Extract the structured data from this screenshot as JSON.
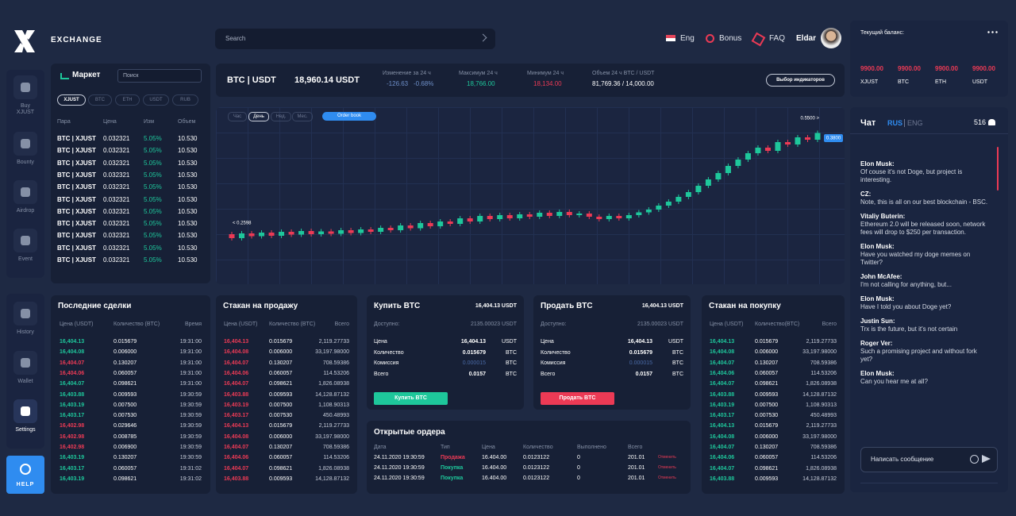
{
  "header": {
    "brand": "EXCHANGE",
    "search": "Search",
    "lang": "Eng",
    "bonus": "Bonus",
    "faq": "FAQ",
    "user": "Eldar"
  },
  "sidebar": {
    "items": [
      {
        "label": "Buy XJUST"
      },
      {
        "label": "Bounty"
      },
      {
        "label": "Airdrop"
      },
      {
        "label": "Event"
      },
      {
        "label": "History"
      },
      {
        "label": "Wallet"
      },
      {
        "label": "Settings"
      }
    ],
    "help": "HELP"
  },
  "balance": {
    "title": "Текущий баланс:",
    "items": [
      {
        "value": "9900.00",
        "label": "XJUST"
      },
      {
        "value": "9900.00",
        "label": "BTC"
      },
      {
        "value": "9900.00",
        "label": "ETH"
      },
      {
        "value": "9900.00",
        "label": "USDT"
      }
    ]
  },
  "market": {
    "title": "Маркет",
    "search": "Поиск",
    "tabs": [
      "XJUST",
      "BTC",
      "ETH",
      "USDT",
      "RUB"
    ],
    "headers": [
      "Пара",
      "Цена",
      "Изм",
      "Объем"
    ],
    "rows": [
      [
        "BTC | XJUST",
        "0.032321",
        "5.05%",
        "10.530"
      ],
      [
        "BTC | XJUST",
        "0.032321",
        "5.05%",
        "10.530"
      ],
      [
        "BTC | XJUST",
        "0.032321",
        "5.05%",
        "10.530"
      ],
      [
        "BTC | XJUST",
        "0.032321",
        "5.05%",
        "10.530"
      ],
      [
        "BTC | XJUST",
        "0.032321",
        "5.05%",
        "10.530"
      ],
      [
        "BTC | XJUST",
        "0.032321",
        "5.05%",
        "10.530"
      ],
      [
        "BTC | XJUST",
        "0.032321",
        "5.05%",
        "10.530"
      ],
      [
        "BTC | XJUST",
        "0.032321",
        "5.05%",
        "10.530"
      ],
      [
        "BTC | XJUST",
        "0.032321",
        "5.05%",
        "10.530"
      ],
      [
        "BTC | XJUST",
        "0.032321",
        "5.05%",
        "10.530"
      ],
      [
        "BTC | XJUST",
        "0.032321",
        "5.05%",
        "10.530"
      ]
    ]
  },
  "ticker": {
    "pair": "BTC | USDT",
    "price": "18,960.14 USDT",
    "change_label": "Изменение за 24 ч",
    "change": "-126.63",
    "change_pct": "-0.68%",
    "max_label": "Максимум 24 ч",
    "max": "18,766.00",
    "min_label": "Минимум 24 ч",
    "min": "18,134.00",
    "volume_label": "Объем 24 ч BTC / USDT",
    "volume": "81,769.36 / 14,000.00",
    "button": "Выбор индикаторов"
  },
  "chart_data": {
    "type": "candlestick",
    "tabs": [
      "Час",
      "День",
      "Нед.",
      "Мес."
    ],
    "active_tab": 1,
    "order_book": "Order book",
    "ylim": [
      0.2,
      0.6
    ],
    "up_color": "#1ec79b",
    "down_color": "#ec3a55",
    "annotations": [
      "< 0.2598",
      "0.5500 >",
      "0.3800"
    ],
    "open": [
      0.29,
      0.28,
      0.292,
      0.285,
      0.294,
      0.286,
      0.296,
      0.289,
      0.298,
      0.29,
      0.297,
      0.291,
      0.3,
      0.293,
      0.302,
      0.296,
      0.306,
      0.3,
      0.312,
      0.305,
      0.318,
      0.31,
      0.322,
      0.316,
      0.33,
      0.322,
      0.336,
      0.328,
      0.338,
      0.33,
      0.34,
      0.334,
      0.344,
      0.336,
      0.346,
      0.338,
      0.342,
      0.334,
      0.328,
      0.336,
      0.33,
      0.338,
      0.345,
      0.352,
      0.362,
      0.372,
      0.384,
      0.396,
      0.412,
      0.428,
      0.444,
      0.462,
      0.478,
      0.494,
      0.508,
      0.5,
      0.522,
      0.516,
      0.534,
      0.528
    ],
    "close": [
      0.28,
      0.292,
      0.285,
      0.294,
      0.286,
      0.296,
      0.289,
      0.298,
      0.29,
      0.297,
      0.291,
      0.3,
      0.293,
      0.302,
      0.296,
      0.306,
      0.3,
      0.312,
      0.305,
      0.318,
      0.31,
      0.322,
      0.316,
      0.33,
      0.322,
      0.336,
      0.328,
      0.338,
      0.33,
      0.34,
      0.334,
      0.344,
      0.336,
      0.346,
      0.338,
      0.342,
      0.334,
      0.328,
      0.336,
      0.33,
      0.338,
      0.345,
      0.352,
      0.362,
      0.372,
      0.384,
      0.396,
      0.412,
      0.428,
      0.444,
      0.462,
      0.478,
      0.494,
      0.508,
      0.5,
      0.522,
      0.516,
      0.534,
      0.528,
      0.545
    ],
    "high": [
      0.296,
      0.298,
      0.298,
      0.3,
      0.3,
      0.302,
      0.302,
      0.304,
      0.304,
      0.303,
      0.303,
      0.306,
      0.306,
      0.308,
      0.308,
      0.312,
      0.312,
      0.318,
      0.318,
      0.324,
      0.324,
      0.328,
      0.328,
      0.336,
      0.336,
      0.342,
      0.342,
      0.344,
      0.344,
      0.346,
      0.346,
      0.35,
      0.35,
      0.352,
      0.352,
      0.348,
      0.348,
      0.34,
      0.342,
      0.342,
      0.344,
      0.351,
      0.358,
      0.368,
      0.378,
      0.39,
      0.402,
      0.418,
      0.434,
      0.45,
      0.468,
      0.484,
      0.5,
      0.514,
      0.514,
      0.528,
      0.528,
      0.54,
      0.54,
      0.551
    ],
    "low": [
      0.274,
      0.274,
      0.279,
      0.279,
      0.28,
      0.28,
      0.283,
      0.283,
      0.284,
      0.284,
      0.285,
      0.285,
      0.287,
      0.287,
      0.29,
      0.29,
      0.294,
      0.294,
      0.299,
      0.299,
      0.304,
      0.304,
      0.31,
      0.31,
      0.316,
      0.316,
      0.322,
      0.322,
      0.324,
      0.324,
      0.328,
      0.328,
      0.33,
      0.33,
      0.332,
      0.332,
      0.328,
      0.322,
      0.322,
      0.324,
      0.324,
      0.332,
      0.339,
      0.346,
      0.356,
      0.366,
      0.378,
      0.39,
      0.406,
      0.422,
      0.438,
      0.456,
      0.472,
      0.488,
      0.494,
      0.494,
      0.51,
      0.51,
      0.522,
      0.522
    ]
  },
  "trades": {
    "title": "Последние сделки",
    "headers": [
      "Цена (USDT)",
      "Количество (BTC)",
      "Время"
    ],
    "rows": [
      {
        "price": "16,404.13",
        "qty": "0.015679",
        "time": "19:31:00",
        "color": "#1ec79b"
      },
      {
        "price": "16,404.08",
        "qty": "0.006000",
        "time": "19:31:00",
        "color": "#1ec79b"
      },
      {
        "price": "16,404.07",
        "qty": "0.130207",
        "time": "19:31:00",
        "color": "#ec3a55"
      },
      {
        "price": "16,404.06",
        "qty": "0.060057",
        "time": "19:31:00",
        "color": "#ec3a55"
      },
      {
        "price": "16,404.07",
        "qty": "0.098621",
        "time": "19:31:00",
        "color": "#1ec79b"
      },
      {
        "price": "16,403.88",
        "qty": "0.009593",
        "time": "19:30:59",
        "color": "#1ec79b"
      },
      {
        "price": "16,403.19",
        "qty": "0.007500",
        "time": "19:30:59",
        "color": "#1ec79b"
      },
      {
        "price": "16,403.17",
        "qty": "0.007530",
        "time": "19:30:59",
        "color": "#1ec79b"
      },
      {
        "price": "16,402.98",
        "qty": "0.029646",
        "time": "19:30:59",
        "color": "#ec3a55"
      },
      {
        "price": "16,402.98",
        "qty": "0.008785",
        "time": "19:30:59",
        "color": "#ec3a55"
      },
      {
        "price": "16,402.98",
        "qty": "0.006900",
        "time": "19:30:59",
        "color": "#ec3a55"
      },
      {
        "price": "16,403.19",
        "qty": "0.130207",
        "time": "19:30:59",
        "color": "#1ec79b"
      },
      {
        "price": "16,403.17",
        "qty": "0.060057",
        "time": "19:31:02",
        "color": "#1ec79b"
      },
      {
        "price": "16,403.19",
        "qty": "0.098621",
        "time": "19:31:02",
        "color": "#1ec79b"
      }
    ]
  },
  "sell_book": {
    "title": "Стакан на продажу",
    "headers": [
      "Цена (USDT)",
      "Количество (BTC)",
      "Всего"
    ],
    "color": "#ec3a55",
    "rows": [
      [
        "16,404.13",
        "0.015679",
        "2,119.27733"
      ],
      [
        "16,404.08",
        "0.006000",
        "33,197.98000"
      ],
      [
        "16,404.07",
        "0.130207",
        "708.59386"
      ],
      [
        "16,404.06",
        "0.060057",
        "114.53206"
      ],
      [
        "16,404.07",
        "0.098621",
        "1,826.08938"
      ],
      [
        "16,403.88",
        "0.009593",
        "14,128.87132"
      ],
      [
        "16,403.19",
        "0.007500",
        "1,108.90313"
      ],
      [
        "16,403.17",
        "0.007530",
        "450.48993"
      ],
      [
        "16,404.13",
        "0.015679",
        "2,119.27733"
      ],
      [
        "16,404.08",
        "0.006000",
        "33,197.98000"
      ],
      [
        "16,404.07",
        "0.130207",
        "708.59386"
      ],
      [
        "16,404.06",
        "0.060057",
        "114.53206"
      ],
      [
        "16,404.07",
        "0.098621",
        "1,826.08938"
      ],
      [
        "16,403.88",
        "0.009593",
        "14,128.87132"
      ]
    ]
  },
  "buy_book": {
    "title": "Стакан на покупку",
    "headers": [
      "Цена (USDT)",
      "Количество(BTC)",
      "Всего"
    ],
    "color": "#1ec79b",
    "rows": [
      [
        "16,404.13",
        "0.015679",
        "2,119.27733"
      ],
      [
        "16,404.08",
        "0.006000",
        "33,197.98000"
      ],
      [
        "16,404.07",
        "0.130207",
        "708.59386"
      ],
      [
        "16,404.06",
        "0.060057",
        "114.53206"
      ],
      [
        "16,404.07",
        "0.098621",
        "1,826.08938"
      ],
      [
        "16,403.88",
        "0.009593",
        "14,128.87132"
      ],
      [
        "16,403.19",
        "0.007500",
        "1,108.90313"
      ],
      [
        "16,403.17",
        "0.007530",
        "450.48993"
      ],
      [
        "16,404.13",
        "0.015679",
        "2,119.27733"
      ],
      [
        "16,404.08",
        "0.006000",
        "33,197.98000"
      ],
      [
        "16,404.07",
        "0.130207",
        "708.59386"
      ],
      [
        "16,404.06",
        "0.060057",
        "114.53206"
      ],
      [
        "16,404.07",
        "0.098621",
        "1,826.08938"
      ],
      [
        "16,403.88",
        "0.009593",
        "14,128.87132"
      ]
    ]
  },
  "buy": {
    "title": "Купить BTC",
    "price": "16,404.13 USDT",
    "available_label": "Доступно:",
    "available": "2135.00023 USDT",
    "button": "Купить BTC",
    "color": "#1ec79b",
    "rows": [
      {
        "label": "Цена",
        "value": "16,404.13",
        "unit": "USDT"
      },
      {
        "label": "Количество",
        "value": "0.015679",
        "unit": "BTC"
      },
      {
        "label": "Комиссия",
        "value": "0.000015",
        "unit": "BTC"
      },
      {
        "label": "Всего",
        "value": "0.0157",
        "unit": "BTC"
      }
    ]
  },
  "sell": {
    "title": "Продать BTC",
    "price": "16,404.13 USDT",
    "available_label": "Доступно:",
    "available": "2135.00023 USDT",
    "button": "Продать BTC",
    "color": "#ec3a55",
    "rows": [
      {
        "label": "Цена",
        "value": "16,404.13",
        "unit": "USDT"
      },
      {
        "label": "Количество",
        "value": "0.015679",
        "unit": "BTC"
      },
      {
        "label": "Комиссия",
        "value": "0.000015",
        "unit": "BTC"
      },
      {
        "label": "Всего",
        "value": "0.0157",
        "unit": "BTC"
      }
    ]
  },
  "orders": {
    "title": "Открытые ордера",
    "headers": [
      "Дата",
      "Тип",
      "Цена",
      "Количество",
      "Выполнено",
      "Всего"
    ],
    "rows": [
      {
        "cells": [
          "24.11.2020 19:30:59",
          "Продажа",
          "16.404.00",
          "0.0123122",
          "0",
          "201.01"
        ],
        "cancel": "Отменить",
        "color": "#ec3a55"
      },
      {
        "cells": [
          "24.11.2020 19:30:59",
          "Покупка",
          "16.404.00",
          "0.0123122",
          "0",
          "201.01"
        ],
        "cancel": "Отменить",
        "color": "#1ec79b"
      },
      {
        "cells": [
          "24.11.2020 19:30:59",
          "Покупка",
          "16.404.00",
          "0.0123122",
          "0",
          "201.01"
        ],
        "cancel": "Отменить",
        "color": "#1ec79b"
      }
    ]
  },
  "chat": {
    "title": "Чат",
    "lang_active": "RUS",
    "lang_other": "ENG",
    "online": "516",
    "input": "Написать сообщение",
    "messages": [
      {
        "name": "Elon Musk:",
        "text": "Of couse it's not Doge, but project is interesting."
      },
      {
        "name": "CZ:",
        "text": "Note, this is all on our best blockchain - BSC."
      },
      {
        "name": "Vitaliy Buterin:",
        "text": "Ethereum 2.0 will be released soon, network fees will drop to $250 per transaction."
      },
      {
        "name": "Elon Musk:",
        "text": "Have you watched my doge memes on Twitter?"
      },
      {
        "name": "John McAfee:",
        "text": "I'm not calling for anything, but..."
      },
      {
        "name": "Elon Musk:",
        "text": "Have I told you about Doge yet?"
      },
      {
        "name": "Justin Sun:",
        "text": "Trx is the future, but it's not certain"
      },
      {
        "name": "Roger Ver:",
        "text": "Such a promising project and without fork yet?"
      },
      {
        "name": "Elon Musk:",
        "text": "Can you hear me at all?"
      }
    ]
  }
}
